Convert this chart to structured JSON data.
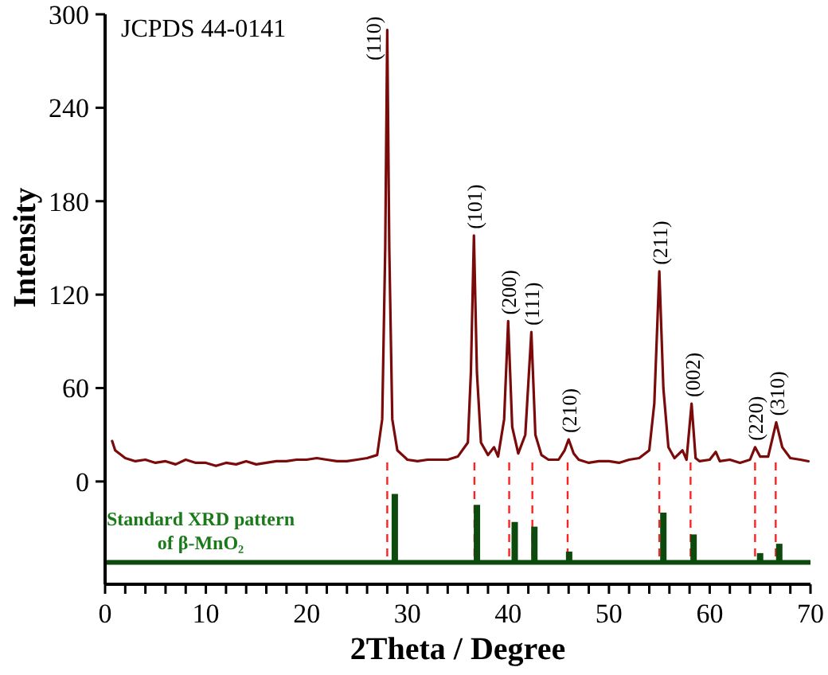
{
  "chart_data": {
    "type": "line",
    "xlabel": "2Theta / Degree",
    "ylabel": "Intensity",
    "xlim": [
      0,
      70
    ],
    "ylim": [
      -66,
      300
    ],
    "xticks": [
      0,
      {
        "value": 2,
        "label": null
      },
      {
        "value": 4,
        "label": null
      },
      {
        "value": 6,
        "label": null
      },
      {
        "value": 8,
        "label": null
      },
      10,
      {
        "value": 12,
        "label": null
      },
      {
        "value": 14,
        "label": null
      },
      {
        "value": 16,
        "label": null
      },
      {
        "value": 18,
        "label": null
      },
      20,
      {
        "value": 22,
        "label": null
      },
      {
        "value": 24,
        "label": null
      },
      {
        "value": 26,
        "label": null
      },
      {
        "value": 28,
        "label": null
      },
      30,
      {
        "value": 32,
        "label": null
      },
      {
        "value": 34,
        "label": null
      },
      {
        "value": 36,
        "label": null
      },
      {
        "value": 38,
        "label": null
      },
      40,
      {
        "value": 42,
        "label": null
      },
      {
        "value": 44,
        "label": null
      },
      {
        "value": 46,
        "label": null
      },
      {
        "value": 48,
        "label": null
      },
      50,
      {
        "value": 52,
        "label": null
      },
      {
        "value": 54,
        "label": null
      },
      {
        "value": 56,
        "label": null
      },
      {
        "value": 58,
        "label": null
      },
      60,
      {
        "value": 62,
        "label": null
      },
      {
        "value": 64,
        "label": null
      },
      {
        "value": 66,
        "label": null
      },
      {
        "value": 68,
        "label": null
      },
      70
    ],
    "yticks": [
      0,
      60,
      120,
      180,
      240,
      300
    ],
    "grid": false,
    "marker": "none",
    "line_style": "solid",
    "series": [
      {
        "color": "#7b0a0a",
        "x": [
          0.7,
          1,
          2,
          3,
          4,
          5,
          6,
          7,
          8,
          9,
          10,
          11,
          12,
          13,
          14,
          15,
          16,
          17,
          18,
          19,
          20,
          21,
          22,
          23,
          24,
          25,
          26,
          27,
          27.5,
          27.8,
          28.0,
          28.2,
          28.5,
          29,
          30,
          31,
          32,
          33,
          34,
          35,
          36,
          36.3,
          36.6,
          36.9,
          37.3,
          38,
          38.6,
          39,
          39.6,
          40.0,
          40.4,
          41,
          41.7,
          42.3,
          42.7,
          43.3,
          44,
          45,
          45.6,
          46.0,
          46.5,
          47,
          48,
          49,
          50,
          51,
          52,
          53,
          54,
          54.5,
          55.0,
          55.4,
          55.9,
          56.5,
          57.3,
          57.7,
          58.2,
          58.6,
          59,
          60,
          60.6,
          61,
          62,
          63,
          64,
          64.5,
          65,
          65.8,
          66.6,
          67.2,
          68,
          69,
          69.8
        ],
        "values": [
          26,
          20,
          15,
          13,
          14,
          12,
          13,
          11,
          14,
          12,
          12,
          10,
          12,
          11,
          13,
          11,
          12,
          13,
          13,
          14,
          14,
          15,
          14,
          13,
          13,
          14,
          15,
          17,
          40,
          150,
          290,
          150,
          40,
          20,
          14,
          13,
          14,
          14,
          14,
          16,
          25,
          70,
          158,
          70,
          25,
          17,
          22,
          16,
          40,
          103,
          35,
          18,
          30,
          96,
          30,
          17,
          14,
          14,
          20,
          27,
          18,
          14,
          12,
          13,
          13,
          12,
          14,
          15,
          20,
          50,
          135,
          60,
          22,
          15,
          20,
          14,
          50,
          15,
          13,
          14,
          19,
          13,
          14,
          12,
          14,
          22,
          16,
          16,
          38,
          22,
          15,
          14,
          13
        ]
      },
      {
        "type": "bar",
        "color": "#0d4a0d",
        "x": [
          28.75,
          36.9,
          40.65,
          42.6,
          46.05,
          55.4,
          58.4,
          65.0,
          66.9
        ],
        "base": [
          -52,
          -52,
          -52,
          -52,
          -52,
          -52,
          -52,
          -52,
          -52
        ],
        "values": [
          44,
          37,
          26,
          23,
          7,
          32,
          18,
          6,
          12
        ]
      }
    ],
    "ref_lines": [
      {
        "axis": "y",
        "value": -52,
        "color": "#0d4a0d",
        "line_style": "solid"
      },
      {
        "axis": "x",
        "value": 28.0,
        "color": "#ff2020",
        "line_style": "dashed"
      },
      {
        "axis": "x",
        "value": 36.65,
        "color": "#ff2020",
        "line_style": "dashed"
      },
      {
        "axis": "x",
        "value": 40.1,
        "color": "#ff2020",
        "line_style": "dashed"
      },
      {
        "axis": "x",
        "value": 42.4,
        "color": "#ff2020",
        "line_style": "dashed"
      },
      {
        "axis": "x",
        "value": 45.9,
        "color": "#ff2020",
        "line_style": "dashed"
      },
      {
        "axis": "x",
        "value": 55.0,
        "color": "#ff2020",
        "line_style": "dashed"
      },
      {
        "axis": "x",
        "value": 58.1,
        "color": "#ff2020",
        "line_style": "dashed"
      },
      {
        "axis": "x",
        "value": 64.5,
        "color": "#ff2020",
        "line_style": "dashed"
      },
      {
        "axis": "x",
        "value": 66.55,
        "color": "#ff2020",
        "line_style": "dashed"
      }
    ],
    "annotations": [
      "JCPDS 44-0141",
      "Standard XRD pattern of β-MnO₂",
      {
        "text": "(110)",
        "x": 28.0,
        "y": 290
      },
      {
        "text": "(101)",
        "x": 36.6,
        "y": 158
      },
      {
        "text": "(200)",
        "x": 40.0,
        "y": 103
      },
      {
        "text": "(111)",
        "x": 42.3,
        "y": 96
      },
      {
        "text": "(210)",
        "x": 46.0,
        "y": 27
      },
      {
        "text": "(211)",
        "x": 55.0,
        "y": 135
      },
      {
        "text": "(002)",
        "x": 58.2,
        "y": 50
      },
      {
        "text": "(220)",
        "x": 64.5,
        "y": 22
      },
      {
        "text": "(310)",
        "x": 66.6,
        "y": 38
      }
    ]
  }
}
